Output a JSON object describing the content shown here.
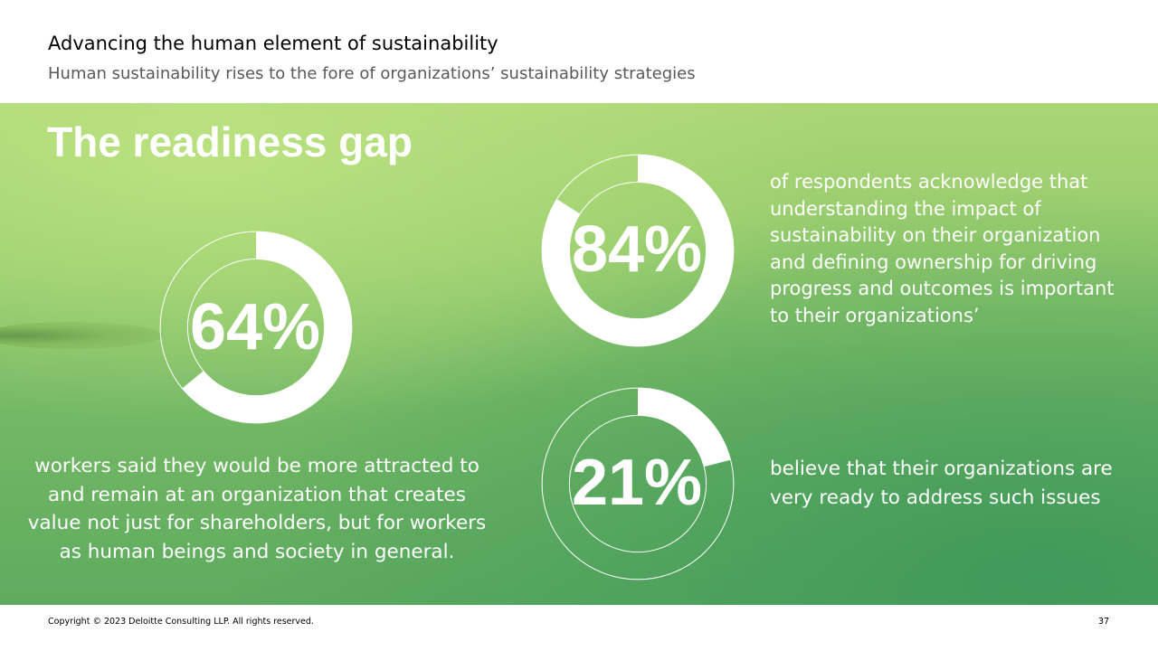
{
  "header": {
    "title": "Advancing the human element of sustainability",
    "subtitle": "Human sustainability rises to the fore of organizations’ sustainability strategies"
  },
  "panel": {
    "title": "The readiness gap"
  },
  "stats": [
    {
      "value_label": "64%",
      "fraction": 0.64,
      "text": "workers said they would be more attracted to and remain at an organization that creates value not just for shareholders, but for workers as human beings and society in general."
    },
    {
      "value_label": "84%",
      "fraction": 0.84,
      "text": "of respondents acknowledge that understanding the impact of sustainability on their organization and defining ownership for driving progress and outcomes is important to their organizations’"
    },
    {
      "value_label": "21%",
      "fraction": 0.21,
      "text": "believe that their organizations are very ready to address such issues"
    }
  ],
  "colors": {
    "ring": "#ffffff",
    "panel_light": "#acd676",
    "panel_dark": "#5eab5f"
  },
  "footer": {
    "copyright": "Copyright © 2023 Deloitte Consulting LLP. All rights reserved.",
    "page_number": "37"
  }
}
